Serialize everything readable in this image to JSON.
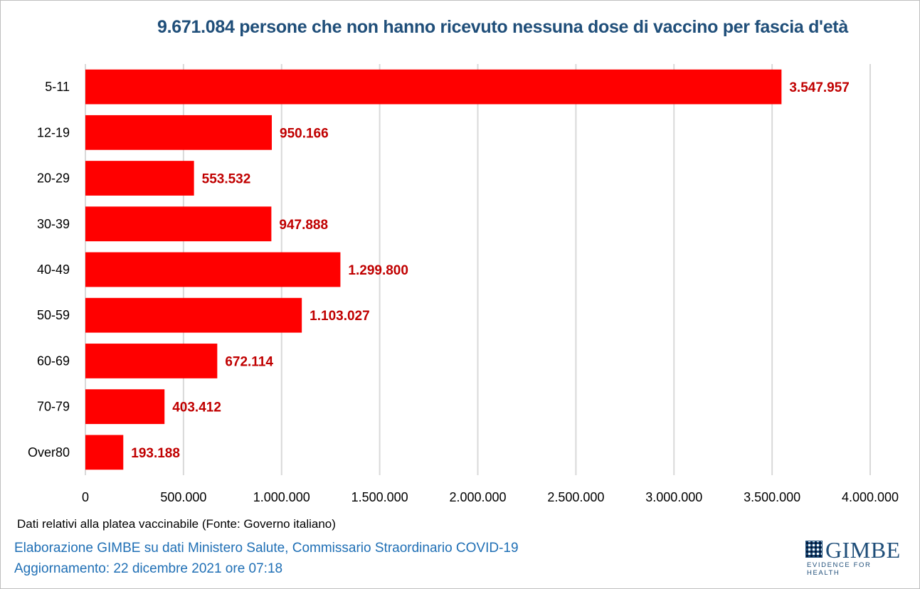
{
  "chart_data": {
    "type": "bar",
    "orientation": "horizontal",
    "title": "9.671.084 persone che non hanno ricevuto nessuna dose di vaccino per fascia d'età",
    "categories": [
      "5-11",
      "12-19",
      "20-29",
      "30-39",
      "40-49",
      "50-59",
      "60-69",
      "70-79",
      "Over80"
    ],
    "values": [
      3547957,
      950166,
      553532,
      947888,
      1299800,
      1103027,
      672114,
      403412,
      193188
    ],
    "value_labels": [
      "3.547.957",
      "950.166",
      "553.532",
      "947.888",
      "1.299.800",
      "1.103.027",
      "672.114",
      "403.412",
      "193.188"
    ],
    "xlim": [
      0,
      4000000
    ],
    "xticks": [
      0,
      500000,
      1000000,
      1500000,
      2000000,
      2500000,
      3000000,
      3500000,
      4000000
    ],
    "xtick_labels": [
      "0",
      "500.000",
      "1.000.000",
      "1.500.000",
      "2.000.000",
      "2.500.000",
      "3.000.000",
      "3.500.000",
      "4.000.000"
    ],
    "grid": "vertical",
    "bar_color": "#ff0000",
    "label_color": "#c00000",
    "title_color": "#1f4e79"
  },
  "footer": {
    "note": "Dati relativi alla platea vaccinabile (Fonte: Governo italiano)",
    "credit_line1": "Elaborazione GIMBE su dati Ministero Salute, Commissario Straordinario COVID-19",
    "credit_line2": "Aggiornamento: 22 dicembre 2021 ore 07:18"
  },
  "logo": {
    "name": "GIMBE",
    "tagline": "EVIDENCE FOR HEALTH",
    "color": "#1f4e79"
  }
}
